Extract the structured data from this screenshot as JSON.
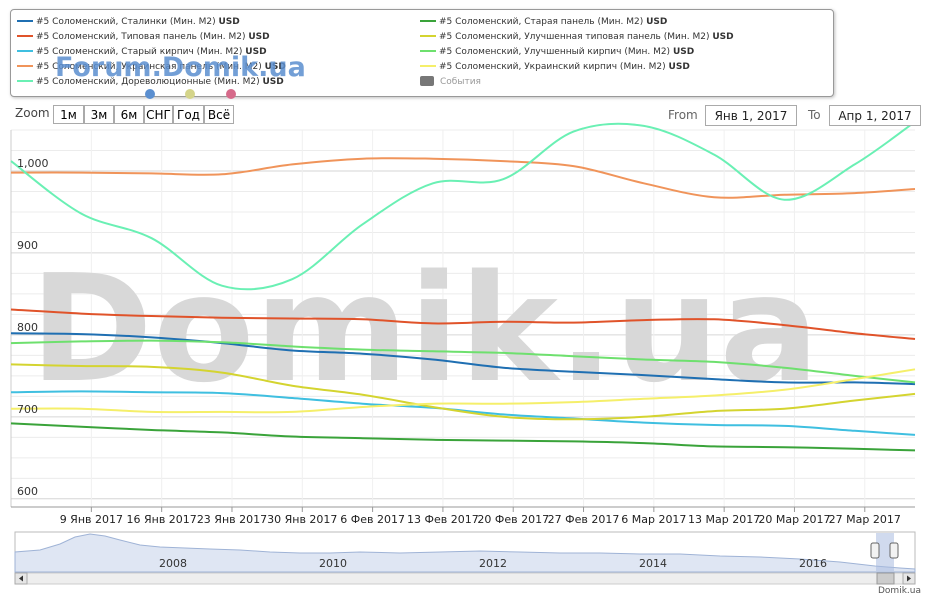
{
  "legend": {
    "left": [
      {
        "label": "#5 Соломенский, Сталинки (Мин. М2)",
        "unit": "USD",
        "color": "#1f6fb2"
      },
      {
        "label": "#5 Соломенский, Типовая панель (Мин. М2)",
        "unit": "USD",
        "color": "#e0532a"
      },
      {
        "label": "#5 Соломенский, Старый кирпич (Мин. М2)",
        "unit": "USD",
        "color": "#3fbfe0"
      },
      {
        "label": "#5 Соломенский, Украинская панель (Мин. М2)",
        "unit": "USD",
        "color": "#f0945a"
      },
      {
        "label": "#5 Соломенский, Дореволюционные (Мин. М2)",
        "unit": "USD",
        "color": "#6af0b4"
      }
    ],
    "right": [
      {
        "label": "#5 Соломенский, Старая панель (Мин. М2)",
        "unit": "USD",
        "color": "#3aa33a"
      },
      {
        "label": "#5 Соломенский, Улучшенная типовая панель (Мин. М2)",
        "unit": "USD",
        "color": "#d4d430"
      },
      {
        "label": "#5 Соломенский, Улучшенный кирпич (Мин. М2)",
        "unit": "USD",
        "color": "#6ee06e"
      },
      {
        "label": "#5 Соломенский, Украинский кирпич (Мин. М2)",
        "unit": "USD",
        "color": "#f5ef6a"
      }
    ],
    "events_label": "События",
    "forum_logo": "Forum.Domik.ua"
  },
  "dots": [
    "#5b8fd0",
    "#d4d48a",
    "#d66a8a"
  ],
  "zoom": {
    "label": "Zoom",
    "buttons": [
      "1м",
      "3м",
      "6м",
      "СНГ",
      "Год",
      "Всё"
    ]
  },
  "range": {
    "from_label": "From",
    "from_value": "Янв 1, 2017",
    "to_label": "To",
    "to_value": "Апр 1, 2017"
  },
  "watermark": "Domik.ua",
  "credit": "Domik.ua",
  "chart_data": {
    "type": "line",
    "x_start": "Янв 1, 2017",
    "x_end": "Апр 1, 2017",
    "x_ticks": [
      "9 Янв 2017",
      "16 Янв 2017",
      "23 Янв 2017",
      "30 Янв 2017",
      "6 Фев 2017",
      "13 Фев 2017",
      "20 Фев 2017",
      "27 Фев 2017",
      "6 Мар 2017",
      "13 Мар 2017",
      "20 Мар 2017",
      "27 Мар 2017"
    ],
    "y_ticks": [
      600,
      700,
      800,
      900,
      1000
    ],
    "y_tick_labels": [
      "600",
      "700",
      "800",
      "900",
      "1,000"
    ],
    "ylim": [
      590,
      1050
    ],
    "grid": true,
    "navigator_labels": [
      "2008",
      "2010",
      "2012",
      "2014",
      "2016"
    ],
    "series": [
      {
        "name": "#5 Соломенский, Сталинки (Мин. М2)",
        "color": "#1f6fb2",
        "x": [
          0,
          7,
          14,
          21,
          28,
          35,
          42,
          49,
          56,
          63,
          70,
          77,
          84,
          90
        ],
        "y": [
          802,
          801,
          797,
          790,
          781,
          777,
          770,
          760,
          755,
          751,
          746,
          742,
          742,
          740
        ]
      },
      {
        "name": "#5 Соломенский, Типовая панель (Мин. М2)",
        "color": "#e0532a",
        "x": [
          0,
          7,
          14,
          21,
          28,
          35,
          42,
          49,
          56,
          63,
          70,
          77,
          84,
          90
        ],
        "y": [
          831,
          826,
          823,
          821,
          820,
          819,
          814,
          816,
          815,
          818,
          819,
          812,
          802,
          795
        ]
      },
      {
        "name": "#5 Соломенский, Старый кирпич (Мин. М2)",
        "color": "#3fbfe0",
        "x": [
          0,
          7,
          14,
          21,
          28,
          35,
          42,
          49,
          56,
          63,
          70,
          77,
          84,
          90
        ],
        "y": [
          730,
          731,
          730,
          729,
          723,
          716,
          711,
          703,
          698,
          693,
          690,
          689,
          683,
          678
        ]
      },
      {
        "name": "#5 Соломенский, Украинская панель (Мин. М2)",
        "color": "#f0945a",
        "x": [
          0,
          7,
          14,
          21,
          28,
          35,
          42,
          49,
          56,
          63,
          70,
          77,
          84,
          90
        ],
        "y": [
          998,
          998,
          997,
          996,
          1008,
          1015,
          1015,
          1012,
          1006,
          985,
          968,
          971,
          973,
          978
        ]
      },
      {
        "name": "#5 Соломенский, Дореволюционные (Мин. М2)",
        "color": "#6af0b4",
        "x": [
          0,
          7,
          14,
          21,
          28,
          35,
          42,
          49,
          56,
          63,
          70,
          77,
          84,
          90
        ],
        "y": [
          1012,
          948,
          918,
          860,
          868,
          935,
          985,
          990,
          1048,
          1055,
          1020,
          965,
          1008,
          1060
        ]
      },
      {
        "name": "#5 Соломенский, Старая панель (Мин. М2)",
        "color": "#3aa33a",
        "x": [
          0,
          7,
          14,
          21,
          28,
          35,
          42,
          49,
          56,
          63,
          70,
          77,
          84,
          90
        ],
        "y": [
          692,
          688,
          684,
          681,
          676,
          674,
          672,
          671,
          670,
          668,
          664,
          663,
          661,
          659
        ]
      },
      {
        "name": "#5 Соломенский, Улучшенная типовая панель (Мин. М2)",
        "color": "#d4d430",
        "x": [
          0,
          7,
          14,
          21,
          28,
          35,
          42,
          49,
          56,
          63,
          70,
          77,
          84,
          90
        ],
        "y": [
          764,
          762,
          761,
          754,
          738,
          727,
          712,
          700,
          697,
          700,
          707,
          710,
          720,
          728
        ]
      },
      {
        "name": "#5 Соломенский, Улучшенный кирпич (Мин. М2)",
        "color": "#6ee06e",
        "x": [
          0,
          7,
          14,
          21,
          28,
          35,
          42,
          49,
          56,
          63,
          70,
          77,
          84,
          90
        ],
        "y": [
          790,
          792,
          793,
          791,
          786,
          782,
          780,
          778,
          774,
          770,
          767,
          760,
          750,
          742
        ]
      },
      {
        "name": "#5 Соломенский, Украинский кирпич (Мин. М2)",
        "color": "#f5ef6a",
        "x": [
          0,
          7,
          14,
          21,
          28,
          35,
          42,
          49,
          56,
          63,
          70,
          77,
          84,
          90
        ],
        "y": [
          710,
          710,
          706,
          706,
          706,
          712,
          716,
          716,
          718,
          722,
          726,
          733,
          746,
          758
        ]
      }
    ]
  }
}
